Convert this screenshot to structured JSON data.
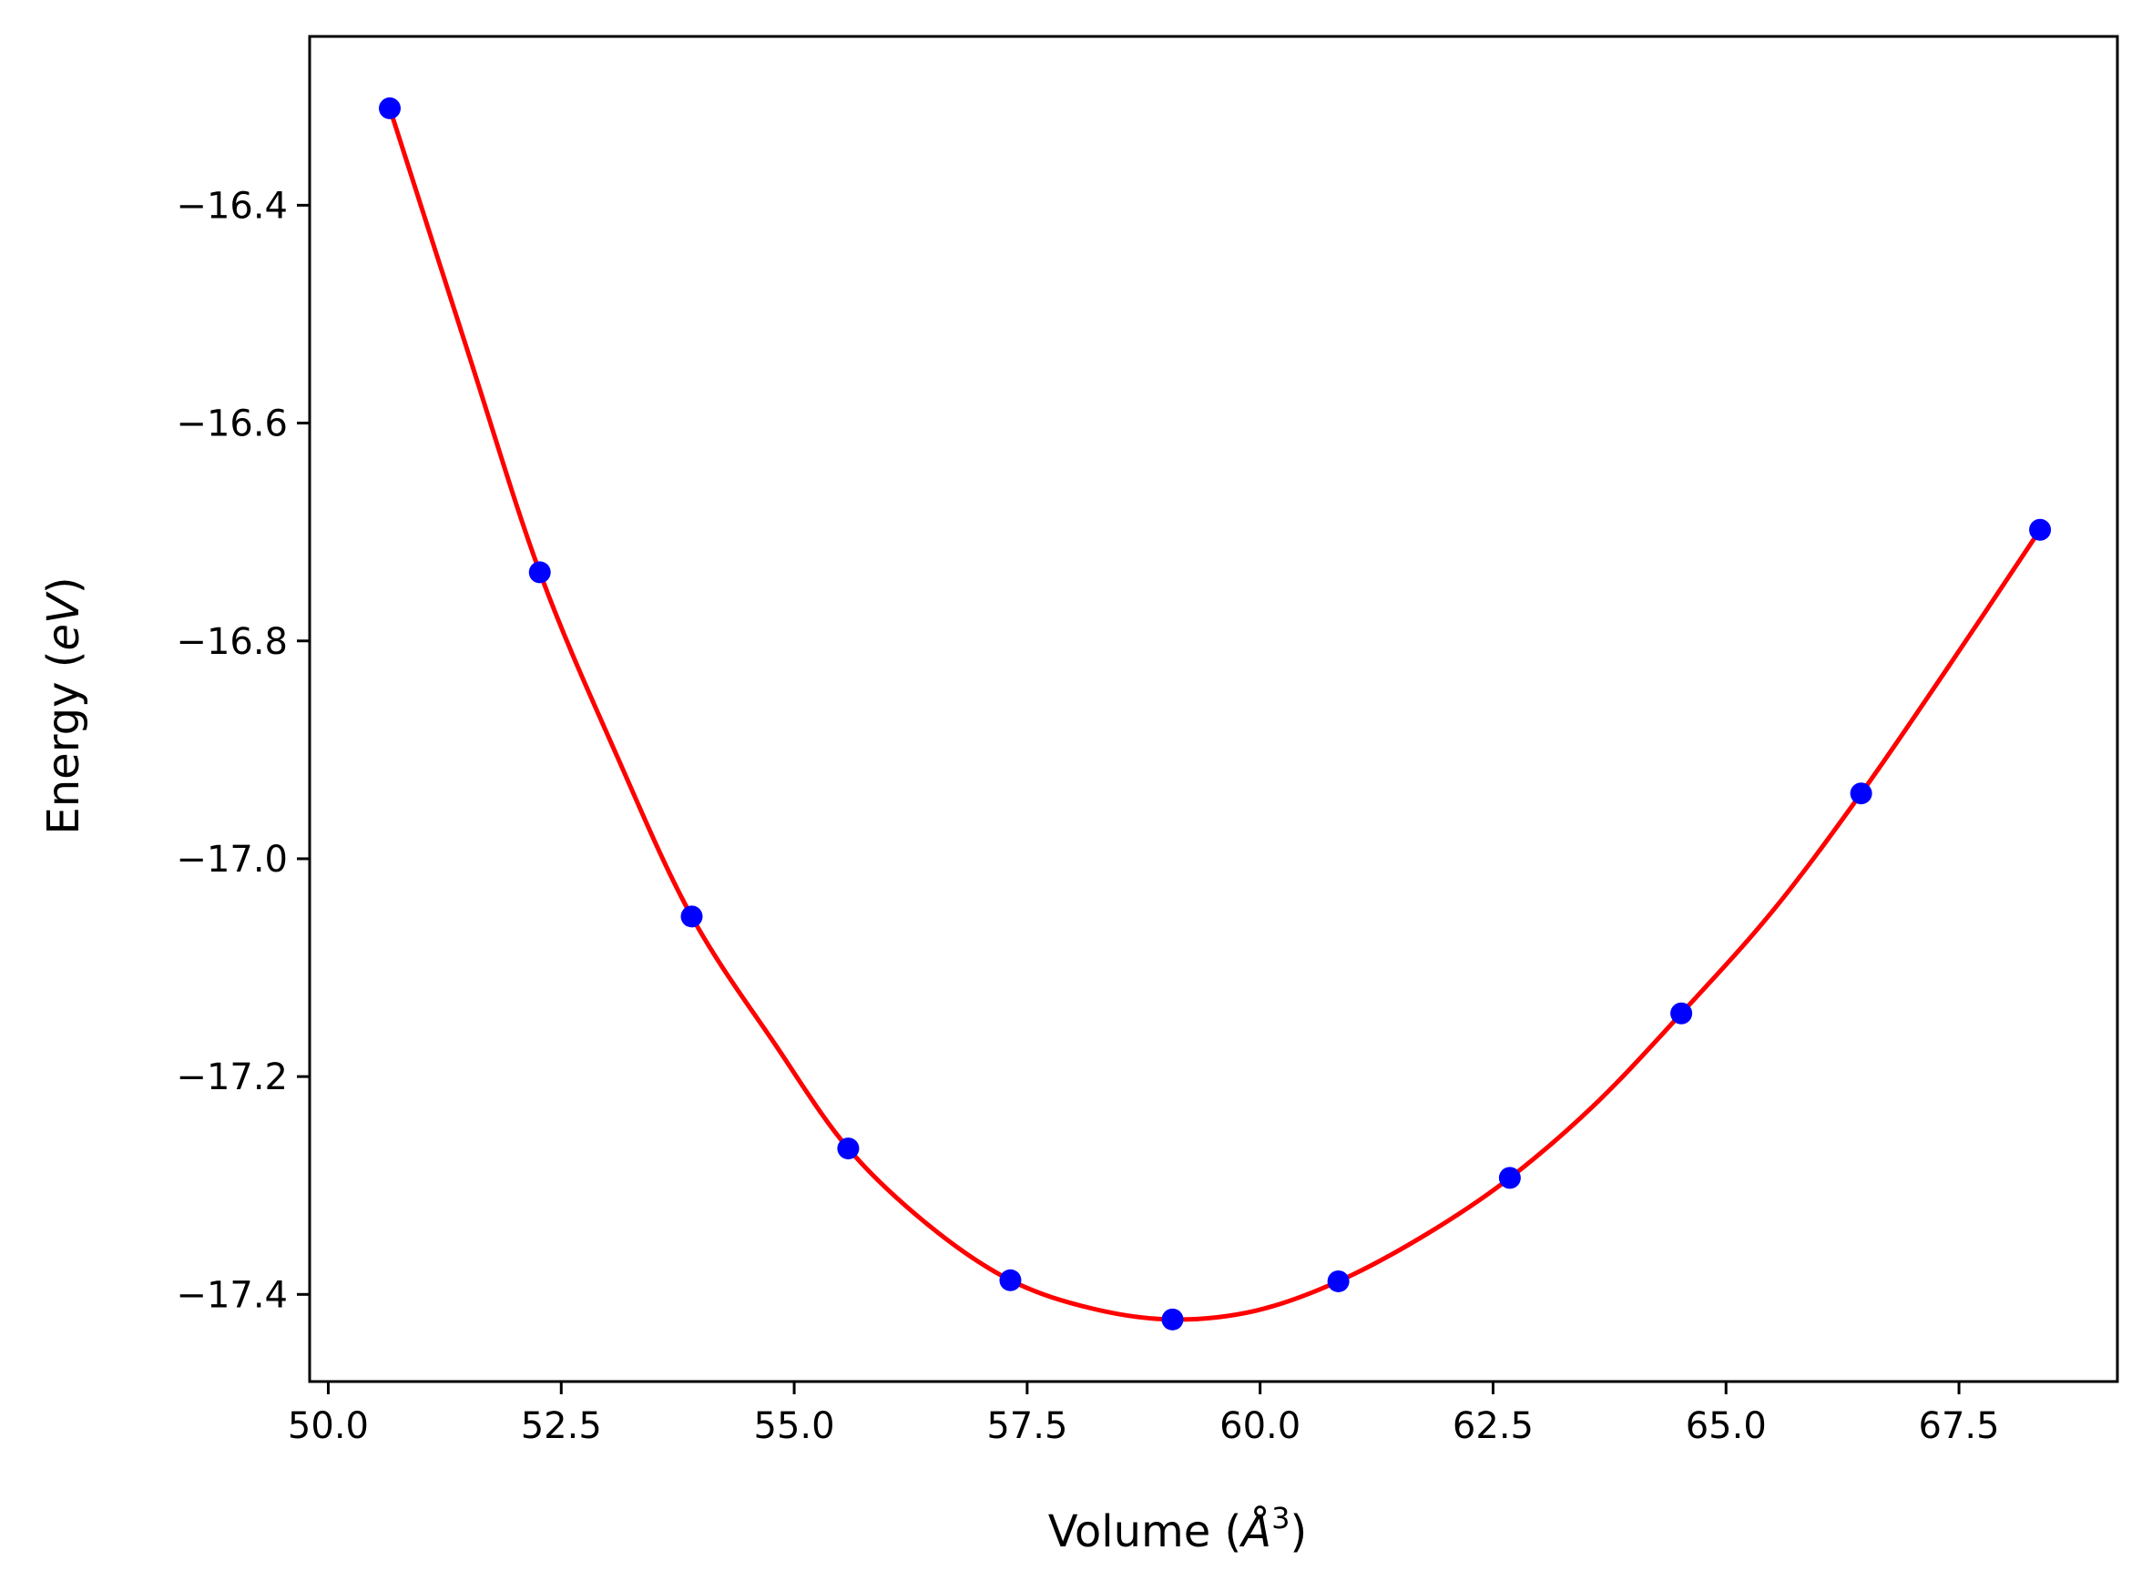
{
  "chart_data": {
    "type": "line",
    "title": "",
    "xlabel": {
      "text": "Volume (",
      "symbol": "Å",
      "exponent": "3",
      "close": ")"
    },
    "ylabel": {
      "text": "Energy (",
      "unit": "eV",
      "close": ")"
    },
    "xlim": [
      49.8,
      69.2
    ],
    "ylim": [
      -17.48,
      -16.245
    ],
    "xticks": [
      50.0,
      52.5,
      55.0,
      57.5,
      60.0,
      62.5,
      65.0,
      67.5
    ],
    "xtick_labels": [
      "50.0",
      "52.5",
      "55.0",
      "57.5",
      "60.0",
      "62.5",
      "65.0",
      "67.5"
    ],
    "yticks": [
      -17.4,
      -17.2,
      -17.0,
      -16.8,
      -16.6,
      -16.4
    ],
    "ytick_labels": [
      "−17.4",
      "−17.2",
      "−17.0",
      "−16.8",
      "−16.6",
      "−16.4"
    ],
    "grid": false,
    "legend": "none",
    "series": [
      {
        "kind": "fit-curve",
        "color": "#ff0000",
        "x": [
          50.66,
          51.5,
          52.27,
          53.1,
          53.9,
          54.8,
          55.58,
          56.45,
          57.32,
          58.2,
          59.06,
          59.95,
          60.84,
          61.78,
          62.68,
          63.6,
          64.52,
          65.5,
          66.45,
          67.4,
          68.37
        ],
        "y": [
          -16.311,
          -16.535,
          -16.737,
          -16.906,
          -17.053,
          -17.171,
          -17.266,
          -17.337,
          -17.387,
          -17.413,
          -17.423,
          -17.415,
          -17.388,
          -17.345,
          -17.293,
          -17.225,
          -17.142,
          -17.048,
          -16.94,
          -16.822,
          -16.698
        ]
      },
      {
        "kind": "data-points",
        "color": "#0000ff",
        "x": [
          50.66,
          52.27,
          53.9,
          55.58,
          57.32,
          59.06,
          60.84,
          62.68,
          64.52,
          66.45,
          68.37
        ],
        "y": [
          -16.311,
          -16.737,
          -17.053,
          -17.266,
          -17.387,
          -17.423,
          -17.388,
          -17.293,
          -17.142,
          -16.94,
          -16.698
        ]
      }
    ]
  }
}
